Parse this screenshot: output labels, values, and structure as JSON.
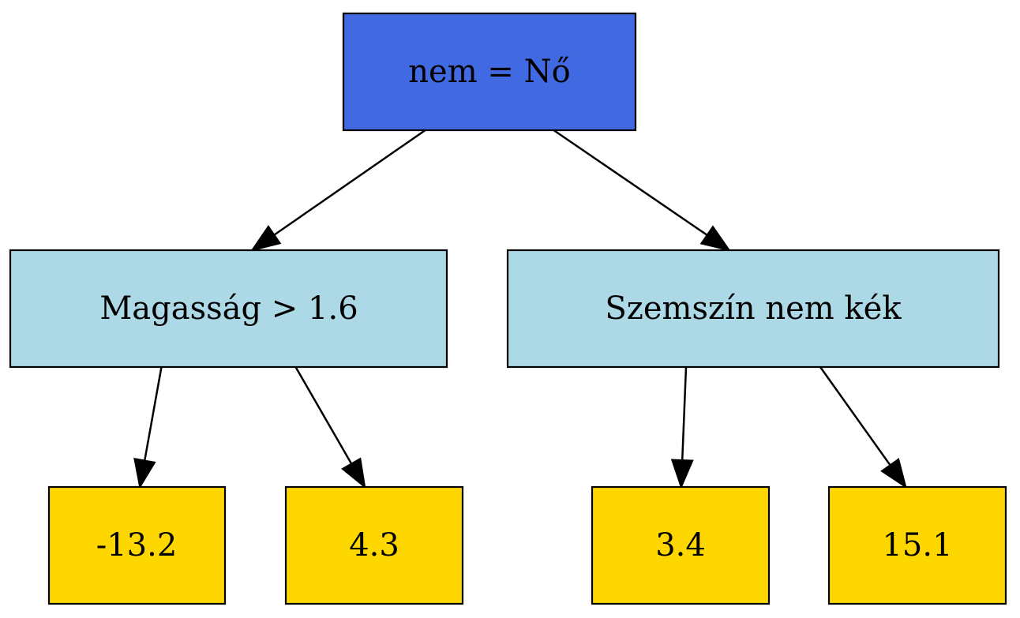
{
  "colors": {
    "root": "#4169e1",
    "split": "#add8e6",
    "leaf": "#ffd700"
  },
  "nodes": {
    "root": {
      "label": "nem = Nő",
      "kind": "root"
    },
    "left_split": {
      "label": "Magasság > 1.6",
      "kind": "split"
    },
    "right_split": {
      "label": "Szemszín nem kék",
      "kind": "split"
    },
    "leaf_1": {
      "label": "-13.2",
      "kind": "leaf"
    },
    "leaf_2": {
      "label": "4.3",
      "kind": "leaf"
    },
    "leaf_3": {
      "label": "3.4",
      "kind": "leaf"
    },
    "leaf_4": {
      "label": "15.1",
      "kind": "leaf"
    }
  },
  "edges": [
    {
      "from": "root",
      "to": "left_split"
    },
    {
      "from": "root",
      "to": "right_split"
    },
    {
      "from": "left_split",
      "to": "leaf_1"
    },
    {
      "from": "left_split",
      "to": "leaf_2"
    },
    {
      "from": "right_split",
      "to": "leaf_3"
    },
    {
      "from": "right_split",
      "to": "leaf_4"
    }
  ]
}
